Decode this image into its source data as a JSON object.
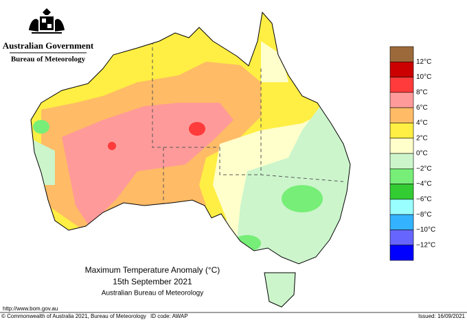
{
  "header": {
    "government": "Australian Government",
    "bureau": "Bureau of Meteorology"
  },
  "map": {
    "title": "Maximum Temperature Anomaly (°C)",
    "date": "15th September 2021",
    "source": "Australian Bureau of Meteorology"
  },
  "legend": {
    "labels": [
      "12°C",
      "10°C",
      "8°C",
      "6°C",
      "4°C",
      "2°C",
      "0°C",
      "−2°C",
      "−4°C",
      "−6°C",
      "−8°C",
      "−10°C",
      "−12°C"
    ],
    "colors": [
      "#9c6a3a",
      "#cc0000",
      "#ff3b3b",
      "#ff9a9a",
      "#ffbb66",
      "#ffee44",
      "#ffffcc",
      "#ccf5cc",
      "#77ee77",
      "#33cc33",
      "#99ffff",
      "#33b3ff",
      "#6666ff",
      "#0000ff"
    ]
  },
  "footer": {
    "url": "http://www.bom.gov.au",
    "copyright": "© Commonwealth of Australia 2021, Bureau of Meteorology",
    "id_code": "ID code: AWAP",
    "issued": "Issued: 16/09/2021"
  }
}
